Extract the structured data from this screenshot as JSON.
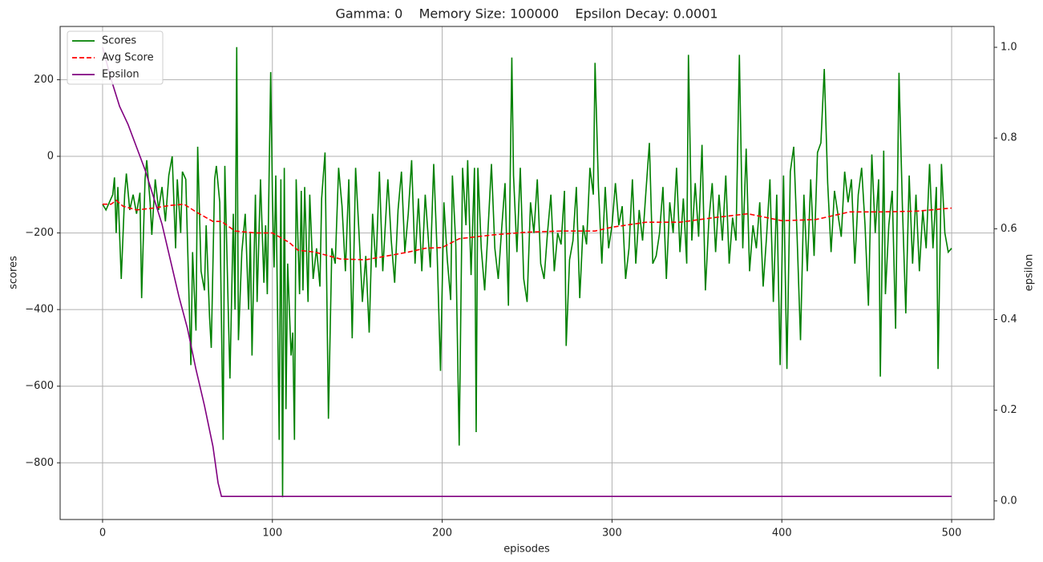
{
  "chart_data": {
    "type": "line",
    "title": "Gamma: 0    Memory Size: 100000    Epsilon Decay: 0.0001",
    "x_label": "episodes",
    "y_label": "scores",
    "y2_label": "epsilon",
    "xlim": [
      -25,
      525
    ],
    "xticks": [
      0,
      100,
      200,
      300,
      400,
      500
    ],
    "ylim": [
      -948,
      339
    ],
    "yticks": [
      {
        "value": -800,
        "label": "−800"
      },
      {
        "value": -600,
        "label": "−600"
      },
      {
        "value": -400,
        "label": "−400"
      },
      {
        "value": -200,
        "label": "−200"
      },
      0,
      200
    ],
    "y2lim": [
      -0.041,
      1.046
    ],
    "y2ticks": [
      {
        "value": 0,
        "label": "0.0"
      },
      0.2,
      0.4,
      0.6,
      0.8,
      {
        "value": 1,
        "label": "1.0"
      }
    ],
    "grid": true,
    "legend": "upper left",
    "series": [
      {
        "name": "Scores",
        "color": "#008000",
        "linestyle": "solid",
        "x": [
          0,
          2,
          4,
          6,
          7,
          8,
          9,
          11,
          13,
          14,
          16,
          18,
          20,
          22,
          23,
          25,
          26,
          28,
          29,
          31,
          33,
          35,
          37,
          39,
          41,
          43,
          44,
          46,
          47,
          49,
          52,
          53,
          55,
          56,
          58,
          60,
          61,
          63,
          64,
          66,
          67,
          69,
          71,
          72,
          74,
          75,
          77,
          78,
          79,
          80,
          82,
          84,
          86,
          87,
          88,
          90,
          91,
          93,
          95,
          96,
          97,
          99,
          100,
          101,
          102,
          104,
          105,
          106,
          107,
          108,
          109,
          111,
          112,
          113,
          114,
          116,
          117,
          118,
          119,
          121,
          122,
          124,
          126,
          128,
          129,
          131,
          133,
          135,
          137,
          139,
          141,
          143,
          145,
          147,
          149,
          151,
          153,
          155,
          157,
          159,
          161,
          163,
          165,
          168,
          170,
          172,
          174,
          176,
          178,
          180,
          182,
          184,
          186,
          188,
          190,
          193,
          195,
          197,
          199,
          201,
          203,
          205,
          206,
          208,
          210,
          212,
          214,
          215,
          217,
          219,
          220,
          221,
          223,
          225,
          227,
          229,
          231,
          233,
          235,
          237,
          239,
          241,
          242,
          244,
          246,
          248,
          250,
          252,
          254,
          256,
          258,
          260,
          262,
          264,
          266,
          268,
          270,
          272,
          273,
          275,
          277,
          279,
          281,
          283,
          285,
          287,
          289,
          290,
          292,
          294,
          296,
          298,
          300,
          302,
          304,
          306,
          308,
          310,
          312,
          314,
          316,
          318,
          320,
          322,
          324,
          326,
          328,
          330,
          332,
          334,
          336,
          338,
          340,
          342,
          344,
          345,
          347,
          349,
          351,
          353,
          355,
          357,
          359,
          361,
          363,
          365,
          367,
          369,
          371,
          373,
          375,
          377,
          379,
          381,
          383,
          385,
          387,
          389,
          391,
          393,
          395,
          397,
          399,
          401,
          403,
          405,
          407,
          409,
          411,
          413,
          415,
          417,
          419,
          421,
          423,
          425,
          427,
          429,
          431,
          433,
          435,
          437,
          439,
          441,
          443,
          445,
          447,
          449,
          451,
          453,
          455,
          457,
          458,
          460,
          461,
          463,
          465,
          467,
          469,
          471,
          473,
          475,
          477,
          479,
          481,
          483,
          485,
          487,
          489,
          491,
          492,
          494,
          496,
          498,
          500
        ],
        "values": [
          -125,
          -140,
          -120,
          -100,
          -55,
          -200,
          -80,
          -320,
          -100,
          -45,
          -140,
          -100,
          -150,
          -95,
          -370,
          -60,
          -10,
          -120,
          -205,
          -60,
          -140,
          -80,
          -170,
          -50,
          0,
          -240,
          -60,
          -200,
          -40,
          -60,
          -545,
          -250,
          -455,
          25,
          -300,
          -350,
          -180,
          -420,
          -500,
          -60,
          -25,
          -120,
          -740,
          -25,
          -400,
          -580,
          -150,
          -400,
          285,
          -480,
          -250,
          -150,
          -400,
          -200,
          -520,
          -100,
          -380,
          -60,
          -330,
          -180,
          -360,
          220,
          -100,
          -290,
          -50,
          -740,
          -60,
          -890,
          -30,
          -660,
          -280,
          -520,
          -460,
          -740,
          -60,
          -360,
          -90,
          -350,
          -80,
          -380,
          -100,
          -320,
          -240,
          -340,
          -110,
          10,
          -685,
          -240,
          -280,
          -30,
          -130,
          -300,
          -60,
          -475,
          -30,
          -200,
          -380,
          -260,
          -460,
          -150,
          -290,
          -40,
          -300,
          -60,
          -220,
          -330,
          -140,
          -40,
          -250,
          -150,
          -10,
          -280,
          -110,
          -300,
          -100,
          -290,
          -20,
          -250,
          -560,
          -120,
          -270,
          -375,
          -50,
          -230,
          -755,
          -30,
          -180,
          -10,
          -310,
          -30,
          -720,
          -30,
          -240,
          -350,
          -190,
          -20,
          -240,
          -320,
          -190,
          -70,
          -390,
          258,
          -50,
          -250,
          -30,
          -320,
          -380,
          -120,
          -200,
          -60,
          -280,
          -320,
          -200,
          -100,
          -300,
          -200,
          -230,
          -90,
          -495,
          -270,
          -220,
          -80,
          -370,
          -180,
          -230,
          -30,
          -100,
          244,
          -80,
          -280,
          -80,
          -240,
          -180,
          -70,
          -180,
          -130,
          -320,
          -240,
          -60,
          -280,
          -140,
          -220,
          -90,
          35,
          -280,
          -260,
          -200,
          -80,
          -320,
          -120,
          -200,
          -30,
          -250,
          -110,
          -280,
          265,
          -220,
          -70,
          -210,
          30,
          -350,
          -170,
          -70,
          -250,
          -100,
          -220,
          -50,
          -280,
          -160,
          -220,
          265,
          -240,
          20,
          -300,
          -180,
          -240,
          -120,
          -340,
          -210,
          -60,
          -380,
          -100,
          -545,
          -50,
          -555,
          -40,
          25,
          -210,
          -480,
          -100,
          -300,
          -60,
          -260,
          10,
          35,
          228,
          -70,
          -250,
          -90,
          -150,
          -210,
          -40,
          -120,
          -60,
          -280,
          -100,
          -30,
          -180,
          -390,
          5,
          -200,
          -60,
          -575,
          15,
          -360,
          -180,
          -90,
          -450,
          218,
          -130,
          -410,
          -50,
          -280,
          -100,
          -300,
          -140,
          -240,
          -20,
          -240,
          -80,
          -555,
          -20,
          -200,
          -250,
          -240
        ]
      },
      {
        "name": "Avg Score",
        "color": "#ff0000",
        "linestyle": "dashed",
        "x": [
          0,
          5,
          8,
          12,
          20,
          30,
          40,
          48,
          55,
          65,
          70,
          78,
          90,
          100,
          110,
          115,
          125,
          140,
          155,
          170,
          180,
          190,
          200,
          210,
          230,
          250,
          270,
          290,
          300,
          320,
          340,
          360,
          380,
          400,
          420,
          440,
          460,
          480,
          500
        ],
        "values": [
          -125,
          -125,
          -115,
          -130,
          -140,
          -135,
          -128,
          -125,
          -145,
          -170,
          -170,
          -195,
          -200,
          -200,
          -225,
          -245,
          -250,
          -268,
          -270,
          -258,
          -250,
          -240,
          -238,
          -215,
          -205,
          -198,
          -195,
          -195,
          -185,
          -172,
          -172,
          -160,
          -150,
          -168,
          -165,
          -145,
          -145,
          -143,
          -135
        ]
      },
      {
        "name": "Epsilon",
        "color": "#800080",
        "linestyle": "solid",
        "axis": "y2",
        "x": [
          0,
          5,
          10,
          15,
          20,
          25,
          30,
          35,
          40,
          45,
          50,
          55,
          60,
          65,
          68,
          70,
          500
        ],
        "values": [
          1.0,
          0.93,
          0.87,
          0.83,
          0.78,
          0.73,
          0.67,
          0.61,
          0.53,
          0.45,
          0.38,
          0.29,
          0.21,
          0.12,
          0.04,
          0.01,
          0.01
        ]
      }
    ]
  }
}
